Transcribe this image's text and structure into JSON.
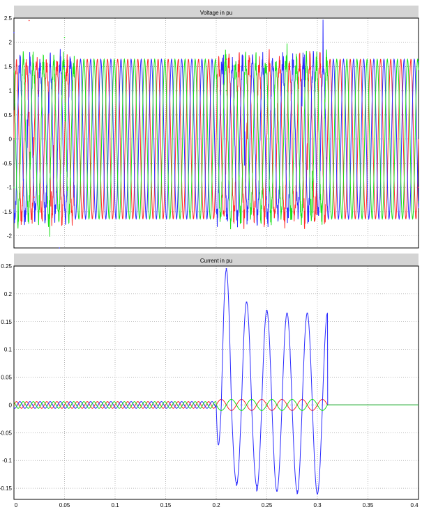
{
  "colors": {
    "background": "#ffffff",
    "title_band": "#d4d4d4",
    "axes_bg": "#ffffff",
    "grid": "#8a8a8a",
    "phase_a": "#ff2a2a",
    "phase_b": "#2a2aff",
    "phase_c": "#19e019"
  },
  "chart_data": [
    {
      "type": "line",
      "title": "Voltage in pu",
      "xlim": [
        0,
        0.4
      ],
      "ylim": [
        -2.25,
        2.5
      ],
      "grid": true,
      "x_ticks": [
        0,
        0.05,
        0.1,
        0.15,
        0.2,
        0.25,
        0.3,
        0.35,
        0.4
      ],
      "y_ticks": [
        -2,
        -1.5,
        -1,
        -0.5,
        0,
        0.5,
        1,
        1.5,
        2,
        2.5
      ],
      "y_tick_labels": [
        "-2",
        "-1.5",
        "-1",
        "-0.5",
        "0",
        "0.5",
        "1",
        "1.5",
        "2",
        "2.5"
      ],
      "signal": {
        "frequency_hz": 100,
        "amplitude": 1.65,
        "phases_deg": [
          0,
          -120,
          120
        ]
      },
      "series": [
        {
          "color": "red",
          "points": [
            [
              0,
              0
            ],
            [
              0.015,
              2.45
            ],
            [
              0.02,
              -1.2
            ],
            [
              0.21,
              1.65
            ],
            [
              0.4,
              -1.0
            ]
          ]
        },
        {
          "color": "blue",
          "points": [
            [
              0,
              2.2
            ],
            [
              0.045,
              -2.25
            ],
            [
              0.05,
              1.5
            ],
            [
              0.21,
              -1.65
            ],
            [
              0.4,
              1.6
            ]
          ]
        },
        {
          "color": "green",
          "points": [
            [
              0,
              -1.0
            ],
            [
              0.05,
              2.1
            ],
            [
              0.21,
              1.0
            ],
            [
              0.4,
              -1.3
            ]
          ]
        }
      ],
      "disturbances": [
        {
          "from": 0.0,
          "to": 0.06
        },
        {
          "from": 0.2,
          "to": 0.31
        }
      ]
    },
    {
      "type": "line",
      "title": "Current in pu",
      "xlim": [
        0,
        0.4
      ],
      "ylim": [
        -0.17,
        0.25
      ],
      "grid": true,
      "x_ticks": [
        0,
        0.05,
        0.1,
        0.15,
        0.2,
        0.25,
        0.3,
        0.35,
        0.4
      ],
      "x_tick_labels": [
        "0",
        "0.05",
        "0.1",
        "0.15",
        "0.2",
        "0.25",
        "0.3",
        "0.35",
        "0.4"
      ],
      "y_ticks": [
        -0.15,
        -0.1,
        -0.05,
        0,
        0.05,
        0.1,
        0.15,
        0.2,
        0.25
      ],
      "y_tick_labels": [
        "-0.15",
        "-0.1",
        "-0.05",
        "0",
        "0.05",
        "0.1",
        "0.15",
        "0.2",
        "0.25"
      ],
      "pre_fault": {
        "from": 0,
        "to": 0.2,
        "amplitude": 0.006,
        "frequency_hz": 100
      },
      "fault": {
        "from": 0.2,
        "to": 0.31,
        "blue_peaks": [
          0.245,
          0.185,
          0.17,
          0.165,
          0.165
        ],
        "blue_troughs": [
          -0.14,
          -0.145,
          -0.155,
          -0.155,
          -0.16
        ],
        "red_green_amplitude": 0.01
      },
      "post_fault_value": 0,
      "series": [
        {
          "color": "red",
          "points": [
            [
              0,
              0
            ],
            [
              0.2,
              0
            ],
            [
              0.31,
              0
            ],
            [
              0.4,
              0
            ]
          ]
        },
        {
          "color": "blue",
          "points": [
            [
              0.21,
              0.245
            ],
            [
              0.23,
              0.185
            ],
            [
              0.25,
              0.17
            ],
            [
              0.27,
              0.165
            ],
            [
              0.29,
              0.165
            ],
            [
              0.22,
              -0.14
            ],
            [
              0.24,
              -0.145
            ],
            [
              0.26,
              -0.155
            ],
            [
              0.28,
              -0.155
            ],
            [
              0.3,
              -0.16
            ]
          ]
        },
        {
          "color": "green",
          "points": [
            [
              0,
              0
            ],
            [
              0.2,
              0
            ],
            [
              0.31,
              0
            ]
          ]
        }
      ]
    }
  ]
}
